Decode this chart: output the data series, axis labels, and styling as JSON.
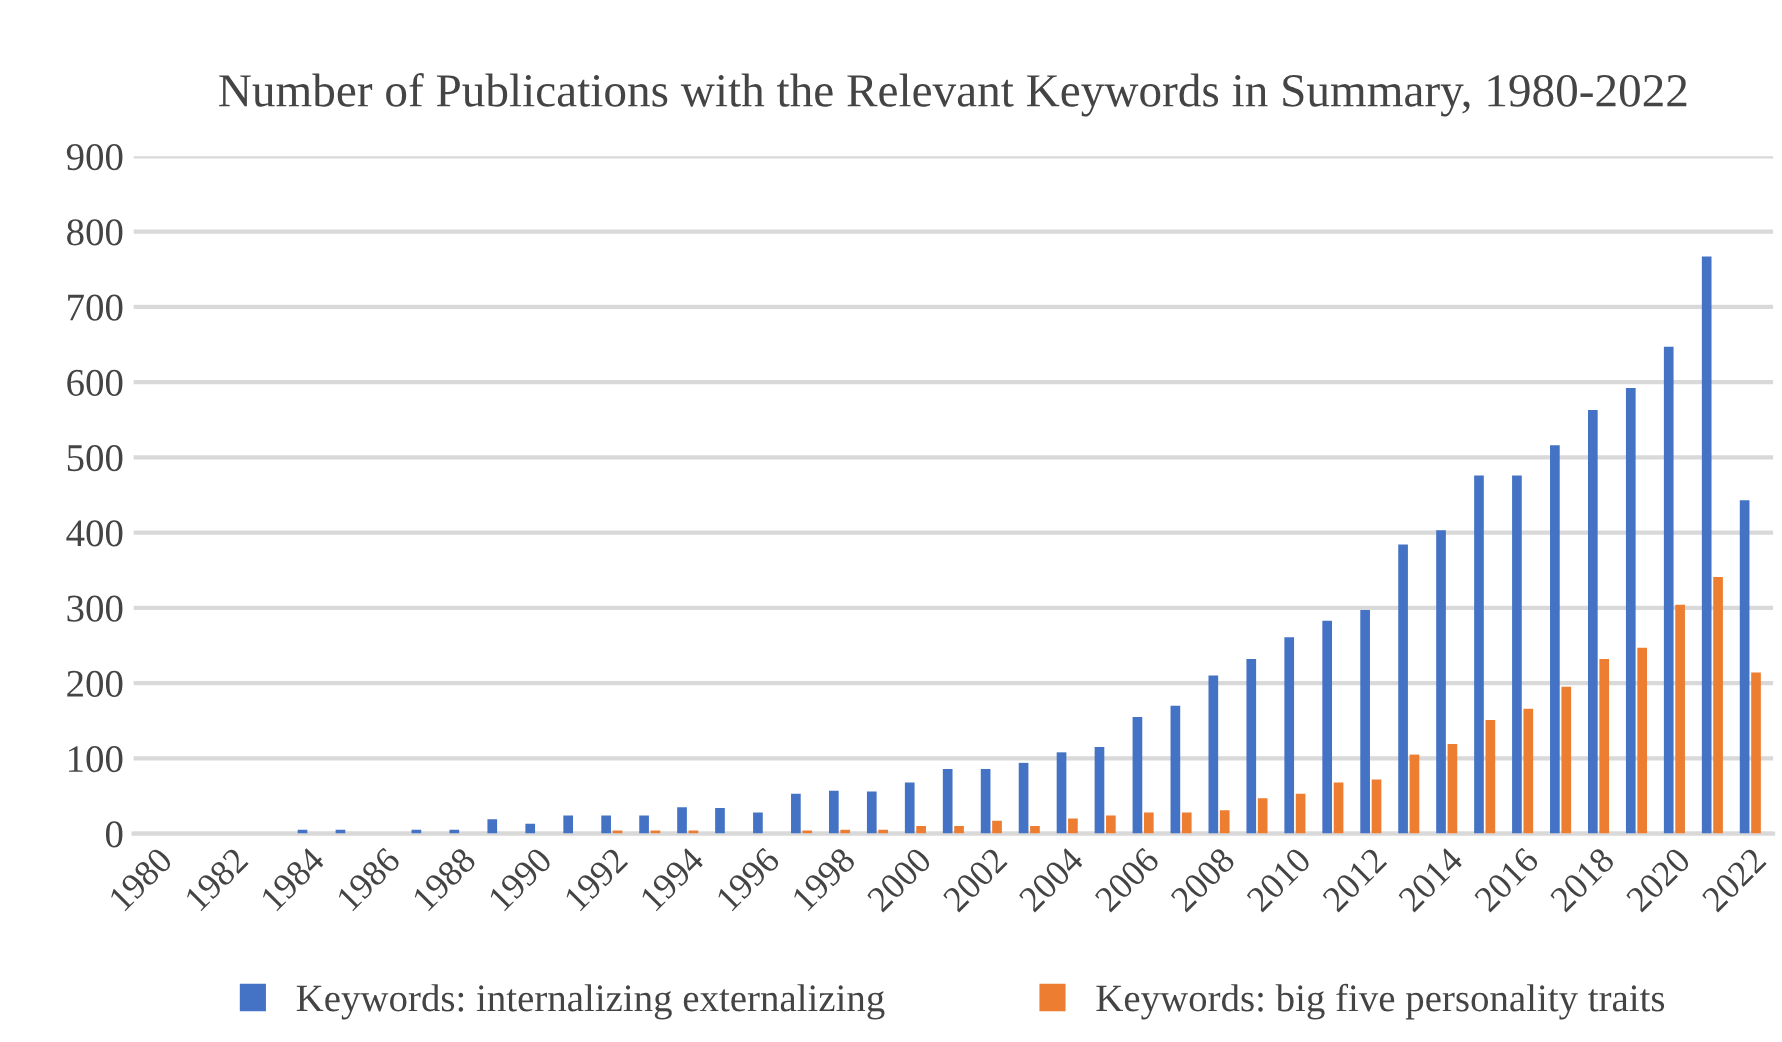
{
  "chart_data": {
    "type": "bar",
    "title": "Number of Publications with the Relevant Keywords in Summary, 1980-2022",
    "categories": [
      "1980",
      null,
      "1982",
      null,
      "1984",
      null,
      "1986",
      null,
      "1988",
      null,
      "1990",
      null,
      "1992",
      null,
      "1994",
      null,
      "1996",
      null,
      "1998",
      null,
      "2000",
      null,
      "2002",
      null,
      "2004",
      null,
      "2006",
      null,
      "2008",
      null,
      "2010",
      null,
      "2012",
      null,
      "2014",
      null,
      "2016",
      null,
      "2018",
      null,
      "2020",
      null,
      "2022"
    ],
    "series": [
      {
        "name": "Keywords: internalizing externalizing",
        "color": "#4472c4",
        "values": [
          null,
          null,
          null,
          null,
          5,
          5,
          null,
          5,
          5,
          19,
          13,
          24,
          24,
          24,
          35,
          34,
          28,
          53,
          57,
          56,
          68,
          86,
          86,
          94,
          108,
          115,
          155,
          170,
          210,
          232,
          261,
          283,
          297,
          384,
          403,
          476,
          476,
          516,
          563,
          592,
          647,
          767,
          443
        ]
      },
      {
        "name": "Keywords: big five personality traits",
        "color": "#ed7d31",
        "values": [
          null,
          null,
          null,
          null,
          null,
          null,
          null,
          null,
          null,
          null,
          null,
          null,
          4,
          4,
          4,
          null,
          null,
          4,
          5,
          5,
          10,
          10,
          17,
          10,
          20,
          24,
          28,
          28,
          31,
          47,
          53,
          68,
          72,
          105,
          119,
          151,
          166,
          195,
          232,
          247,
          304,
          341,
          214
        ]
      }
    ],
    "ylim": [
      0,
      900
    ],
    "yticks": [
      0,
      100,
      200,
      300,
      400,
      500,
      600,
      700,
      800,
      900
    ],
    "grid": "y",
    "legend": "bottom"
  }
}
